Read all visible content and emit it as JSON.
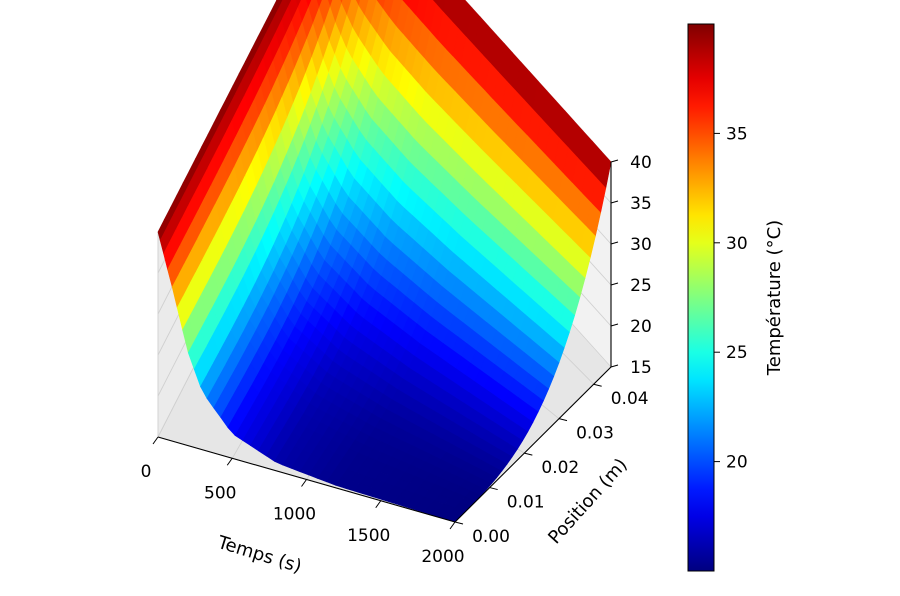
{
  "chart_data": {
    "type": "surface3d",
    "title": "",
    "xlabel": "Temps (s)",
    "ylabel": "Position (m)",
    "zlabel": "",
    "x_ticks": [
      0,
      500,
      1000,
      1500,
      2000
    ],
    "y_ticks": [
      "0.00",
      "0.01",
      "0.02",
      "0.03",
      "0.04"
    ],
    "z_ticks": [
      15,
      20,
      25,
      30,
      35,
      40
    ],
    "xlim": [
      0,
      2000
    ],
    "ylim": [
      0.0,
      0.045
    ],
    "zlim": [
      15,
      40
    ],
    "colormap": "jet",
    "colorbar": {
      "label": "Température (°C)",
      "ticks": [
        20,
        25,
        30,
        35
      ],
      "range": [
        15,
        40
      ]
    },
    "surface": {
      "description": "Temperature T(t, x) across a slab: boundary held at 40 °C, interior cools toward 15 °C over time",
      "initial_temperature": 40,
      "final_interior_temperature": 15,
      "boundary_temperature": 40,
      "time_points": [
        0,
        100,
        200,
        300,
        500,
        800,
        1200,
        2000
      ],
      "temperature_at_x_0": [
        40,
        33.5,
        26.5,
        22,
        18,
        16,
        15.3,
        15
      ],
      "temperature_at_x_max": [
        40,
        40,
        40,
        40,
        40,
        40,
        40,
        40
      ]
    }
  }
}
